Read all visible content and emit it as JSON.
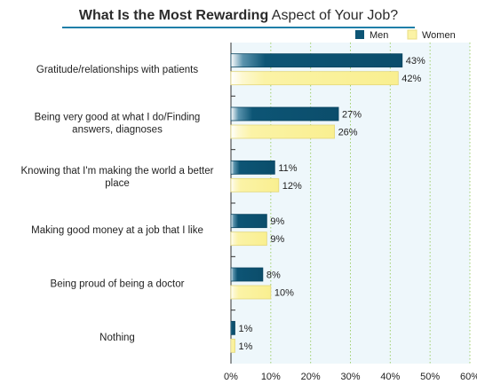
{
  "chart_data": {
    "type": "bar",
    "orientation": "horizontal",
    "title_bold": "What Is the Most Rewarding",
    "title_regular": "Aspect of Your Job?",
    "categories": [
      [
        "Gratitude/relationships with patients"
      ],
      [
        "Being very good at what I do/Finding",
        "answers, diagnoses"
      ],
      [
        "Knowing that I'm making the world a better",
        "place"
      ],
      [
        "Making good money at a job that I like"
      ],
      [
        "Being proud of being a doctor"
      ],
      [
        "Nothing"
      ]
    ],
    "series": [
      {
        "name": "Men",
        "color": "#0d5575",
        "values": [
          43,
          27,
          11,
          9,
          8,
          1
        ]
      },
      {
        "name": "Women",
        "color": "#fbf3a6",
        "values": [
          42,
          26,
          12,
          9,
          10,
          1
        ]
      }
    ],
    "value_suffix": "%",
    "xlim": [
      0,
      60
    ],
    "xticks": [
      "0%",
      "10%",
      "20%",
      "30%",
      "40%",
      "50%",
      "60%"
    ],
    "grid": "vertical-dotted",
    "legend_position": "top-right",
    "colors": {
      "accent": "#1f7fa8",
      "plot_bg": "#eef7fb",
      "grid": "#9fcf6b"
    }
  }
}
